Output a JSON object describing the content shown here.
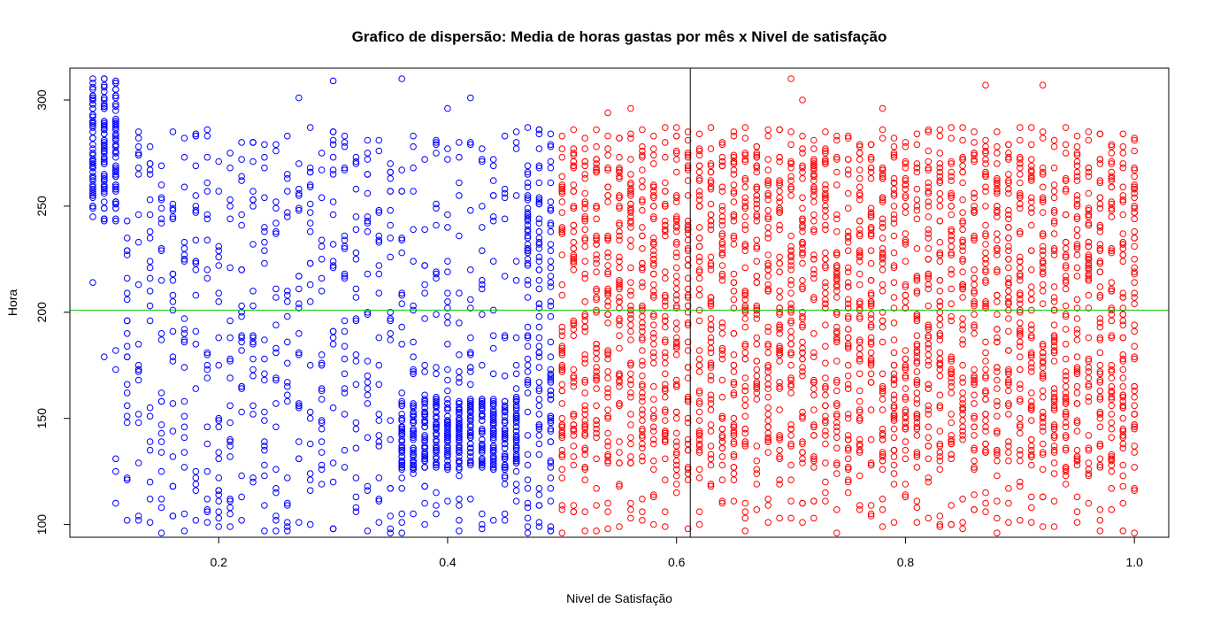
{
  "chart_data": {
    "type": "scatter",
    "title": "Grafico de dispersão: Media de horas gastas por mês x Nivel de satisfação",
    "xlabel": "Nivel de Satisfação",
    "ylabel": "Hora",
    "xlim": [
      0.07,
      1.03
    ],
    "ylim": [
      94,
      315
    ],
    "x_ticks": [
      0.2,
      0.4,
      0.6,
      0.8,
      1.0
    ],
    "x_tick_labels": [
      "0.2",
      "0.4",
      "0.6",
      "0.8",
      "1.0"
    ],
    "y_ticks": [
      100,
      150,
      200,
      250,
      300
    ],
    "y_tick_labels": [
      "100",
      "150",
      "200",
      "250",
      "300"
    ],
    "grid": false,
    "legend": "none",
    "reference_lines": {
      "vertical_x": 0.612,
      "vertical_color": "#000000",
      "horizontal_y": 201,
      "horizontal_color": "#00cc00"
    },
    "series": [
      {
        "color": "#0000ff",
        "rule": "Nivel de Satisfação < 0.5",
        "x_range": [
          0.09,
          0.49
        ],
        "y_range": [
          96,
          310
        ],
        "clusters": [
          {
            "x_range": [
              0.09,
              0.11
            ],
            "y_range": [
              243,
              310
            ],
            "density": "very high"
          },
          {
            "x_range": [
              0.36,
              0.46
            ],
            "y_range": [
              126,
              160
            ],
            "density": "very high"
          }
        ],
        "sample_points": [
          [
            0.09,
            214
          ],
          [
            0.1,
            179
          ],
          [
            0.3,
            309
          ],
          [
            0.36,
            310
          ],
          [
            0.27,
            301
          ],
          [
            0.42,
            301
          ],
          [
            0.4,
            296
          ],
          [
            0.15,
            96
          ],
          [
            0.36,
            96
          ],
          [
            0.33,
            97
          ],
          [
            0.2,
            103
          ],
          [
            0.11,
            110
          ]
        ]
      },
      {
        "color": "#ff0000",
        "rule": "Nivel de Satisfação >= 0.5",
        "x_range": [
          0.5,
          1.0
        ],
        "y_range": [
          96,
          310
        ],
        "clusters": [
          {
            "x_range": [
              0.5,
              1.0
            ],
            "y_range": [
              126,
              286
            ],
            "density": "high"
          }
        ],
        "sample_points": [
          [
            0.7,
            310
          ],
          [
            0.71,
            300
          ],
          [
            0.87,
            307
          ],
          [
            0.92,
            307
          ],
          [
            0.56,
            296
          ],
          [
            0.78,
            296
          ],
          [
            0.54,
            294
          ],
          [
            0.5,
            96
          ],
          [
            0.88,
            96
          ],
          [
            0.99,
            97
          ],
          [
            0.66,
            97
          ],
          [
            0.6,
            287
          ]
        ]
      }
    ]
  }
}
